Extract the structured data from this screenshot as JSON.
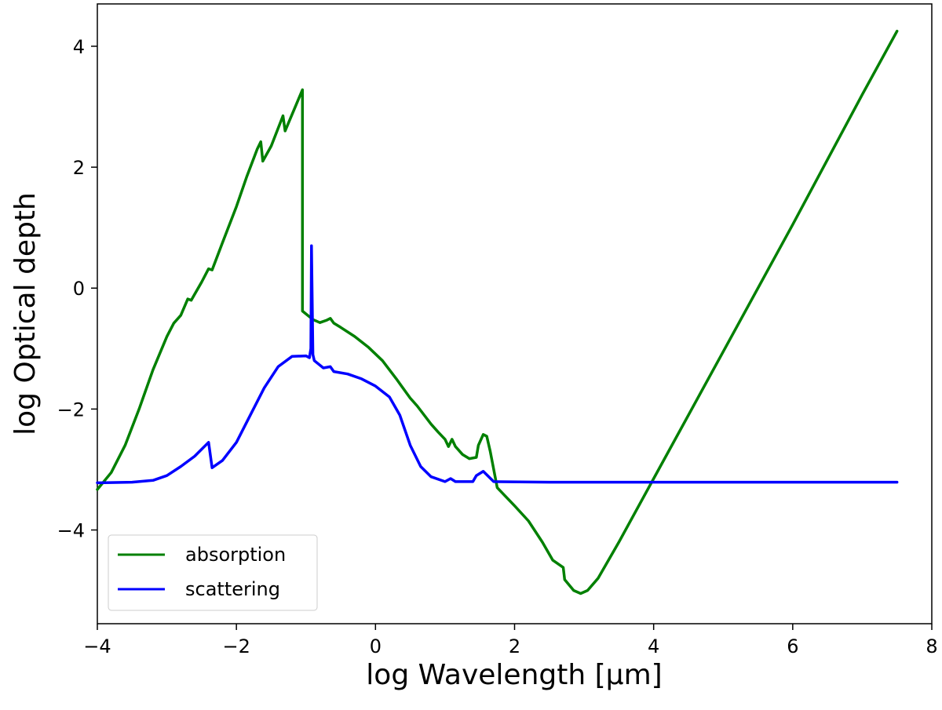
{
  "chart_data": {
    "type": "line",
    "title": "",
    "xlabel": "log Wavelength [μm]",
    "ylabel": "log Optical depth",
    "xlim": [
      -4,
      8
    ],
    "ylim": [
      -5.55,
      4.7
    ],
    "xticks": [
      -4,
      -2,
      0,
      2,
      4,
      6,
      8
    ],
    "xtick_labels": [
      "−4",
      "−2",
      "0",
      "2",
      "4",
      "6",
      "8"
    ],
    "yticks": [
      -4,
      -2,
      0,
      2,
      4
    ],
    "ytick_labels": [
      "−4",
      "−2",
      "0",
      "2",
      "4"
    ],
    "grid": false,
    "legend_position": "lower-left",
    "series": [
      {
        "name": "absorption",
        "color": "#008000",
        "points": [
          [
            -4.0,
            -3.33
          ],
          [
            -3.8,
            -3.05
          ],
          [
            -3.6,
            -2.6
          ],
          [
            -3.4,
            -2.0
          ],
          [
            -3.2,
            -1.35
          ],
          [
            -3.0,
            -0.8
          ],
          [
            -2.9,
            -0.58
          ],
          [
            -2.8,
            -0.45
          ],
          [
            -2.7,
            -0.18
          ],
          [
            -2.65,
            -0.2
          ],
          [
            -2.6,
            -0.1
          ],
          [
            -2.5,
            0.1
          ],
          [
            -2.4,
            0.32
          ],
          [
            -2.35,
            0.3
          ],
          [
            -2.2,
            0.75
          ],
          [
            -2.0,
            1.35
          ],
          [
            -1.85,
            1.85
          ],
          [
            -1.7,
            2.3
          ],
          [
            -1.65,
            2.42
          ],
          [
            -1.62,
            2.1
          ],
          [
            -1.5,
            2.35
          ],
          [
            -1.33,
            2.85
          ],
          [
            -1.3,
            2.6
          ],
          [
            -1.05,
            3.28
          ],
          [
            -1.05,
            -0.38
          ],
          [
            -0.9,
            -0.52
          ],
          [
            -0.8,
            -0.57
          ],
          [
            -0.7,
            -0.53
          ],
          [
            -0.65,
            -0.5
          ],
          [
            -0.6,
            -0.58
          ],
          [
            -0.5,
            -0.65
          ],
          [
            -0.3,
            -0.8
          ],
          [
            -0.1,
            -0.98
          ],
          [
            0.1,
            -1.2
          ],
          [
            0.3,
            -1.5
          ],
          [
            0.5,
            -1.82
          ],
          [
            0.6,
            -1.95
          ],
          [
            0.8,
            -2.25
          ],
          [
            0.9,
            -2.38
          ],
          [
            1.0,
            -2.5
          ],
          [
            1.05,
            -2.62
          ],
          [
            1.1,
            -2.5
          ],
          [
            1.15,
            -2.62
          ],
          [
            1.25,
            -2.75
          ],
          [
            1.35,
            -2.82
          ],
          [
            1.45,
            -2.8
          ],
          [
            1.48,
            -2.6
          ],
          [
            1.55,
            -2.42
          ],
          [
            1.6,
            -2.45
          ],
          [
            1.65,
            -2.7
          ],
          [
            1.75,
            -3.3
          ],
          [
            2.0,
            -3.6
          ],
          [
            2.2,
            -3.85
          ],
          [
            2.4,
            -4.2
          ],
          [
            2.55,
            -4.5
          ],
          [
            2.7,
            -4.62
          ],
          [
            2.72,
            -4.82
          ],
          [
            2.85,
            -5.0
          ],
          [
            2.95,
            -5.05
          ],
          [
            3.05,
            -5.0
          ],
          [
            3.2,
            -4.8
          ],
          [
            3.5,
            -4.2
          ],
          [
            4.0,
            -3.15
          ],
          [
            5.0,
            -1.05
          ],
          [
            6.0,
            1.05
          ],
          [
            7.0,
            3.2
          ],
          [
            7.5,
            4.25
          ]
        ]
      },
      {
        "name": "scattering",
        "color": "#0000ff",
        "points": [
          [
            -4.0,
            -3.22
          ],
          [
            -3.5,
            -3.21
          ],
          [
            -3.2,
            -3.18
          ],
          [
            -3.0,
            -3.1
          ],
          [
            -2.8,
            -2.95
          ],
          [
            -2.6,
            -2.78
          ],
          [
            -2.4,
            -2.55
          ],
          [
            -2.35,
            -2.97
          ],
          [
            -2.2,
            -2.85
          ],
          [
            -2.0,
            -2.55
          ],
          [
            -1.8,
            -2.1
          ],
          [
            -1.6,
            -1.65
          ],
          [
            -1.4,
            -1.3
          ],
          [
            -1.2,
            -1.13
          ],
          [
            -1.0,
            -1.12
          ],
          [
            -0.95,
            -1.15
          ],
          [
            -0.93,
            -1.0
          ],
          [
            -0.92,
            0.7
          ],
          [
            -0.9,
            -1.1
          ],
          [
            -0.88,
            -1.2
          ],
          [
            -0.75,
            -1.32
          ],
          [
            -0.65,
            -1.3
          ],
          [
            -0.6,
            -1.38
          ],
          [
            -0.4,
            -1.42
          ],
          [
            -0.2,
            -1.5
          ],
          [
            0.0,
            -1.62
          ],
          [
            0.2,
            -1.8
          ],
          [
            0.35,
            -2.1
          ],
          [
            0.5,
            -2.6
          ],
          [
            0.65,
            -2.95
          ],
          [
            0.8,
            -3.12
          ],
          [
            1.0,
            -3.2
          ],
          [
            1.08,
            -3.15
          ],
          [
            1.15,
            -3.2
          ],
          [
            1.4,
            -3.2
          ],
          [
            1.45,
            -3.1
          ],
          [
            1.55,
            -3.03
          ],
          [
            1.7,
            -3.2
          ],
          [
            2.5,
            -3.21
          ],
          [
            4.0,
            -3.21
          ],
          [
            6.0,
            -3.21
          ],
          [
            7.5,
            -3.21
          ]
        ]
      }
    ]
  }
}
